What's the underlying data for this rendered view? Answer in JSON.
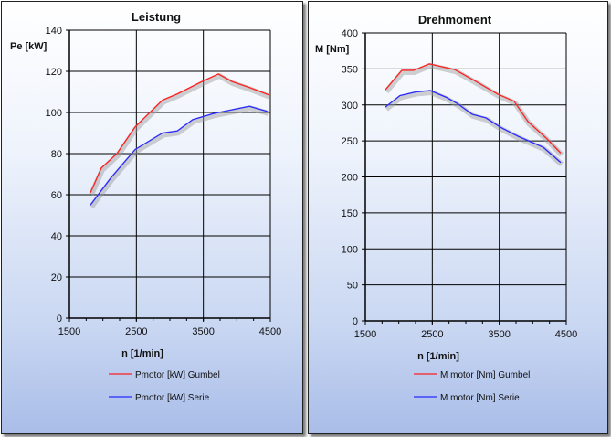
{
  "chart_data": [
    {
      "type": "line",
      "title": "Leistung",
      "xlabel": "n [1/min]",
      "ylabel": "Pe [kW]",
      "xlim": [
        1500,
        4500
      ],
      "ylim": [
        0,
        140
      ],
      "xticks": [
        1500,
        2500,
        3500,
        4500
      ],
      "yticks": [
        0,
        20,
        40,
        60,
        80,
        100,
        120,
        140
      ],
      "grid": true,
      "legend": "bottom",
      "series": [
        {
          "name": "Pmotor [kW] Gumbel",
          "color": "#ff2020",
          "x": [
            1814,
            1977,
            2209,
            2482,
            2890,
            3110,
            3477,
            3723,
            3930,
            4200,
            4473
          ],
          "y": [
            61,
            73,
            80,
            93,
            106,
            109,
            115,
            118.7,
            115,
            112,
            108.6
          ]
        },
        {
          "name": "Pmotor [kW] Serie",
          "color": "#2828ff",
          "x": [
            1814,
            2114,
            2482,
            2890,
            3110,
            3340,
            3655,
            4186,
            4455
          ],
          "y": [
            55,
            68,
            82,
            90,
            91,
            96.5,
            99.5,
            103,
            100.5
          ]
        }
      ]
    },
    {
      "type": "line",
      "title": "Drehmoment",
      "xlabel": "n [1/min]",
      "ylabel": "M [Nm]",
      "xlim": [
        1500,
        4500
      ],
      "ylim": [
        0,
        400
      ],
      "xticks": [
        1500,
        2500,
        3500,
        4500
      ],
      "yticks": [
        0,
        50,
        100,
        150,
        200,
        250,
        300,
        350,
        400
      ],
      "grid": true,
      "legend": "bottom",
      "series": [
        {
          "name": "M motor [Nm] Gumbel",
          "color": "#ff2020",
          "x": [
            1800,
            2045,
            2223,
            2455,
            2836,
            3164,
            3477,
            3723,
            3927,
            4200,
            4418
          ],
          "y": [
            321,
            348,
            348,
            357,
            349,
            332,
            315,
            305,
            277,
            254,
            233
          ]
        },
        {
          "name": "M motor [Nm] Serie",
          "color": "#2828ff",
          "x": [
            1800,
            2018,
            2250,
            2468,
            2700,
            2890,
            3095,
            3300,
            3518,
            3790,
            4159,
            4418
          ],
          "y": [
            297,
            313,
            318,
            320,
            311,
            301,
            287,
            282,
            269,
            256,
            241,
            220
          ]
        }
      ]
    }
  ]
}
